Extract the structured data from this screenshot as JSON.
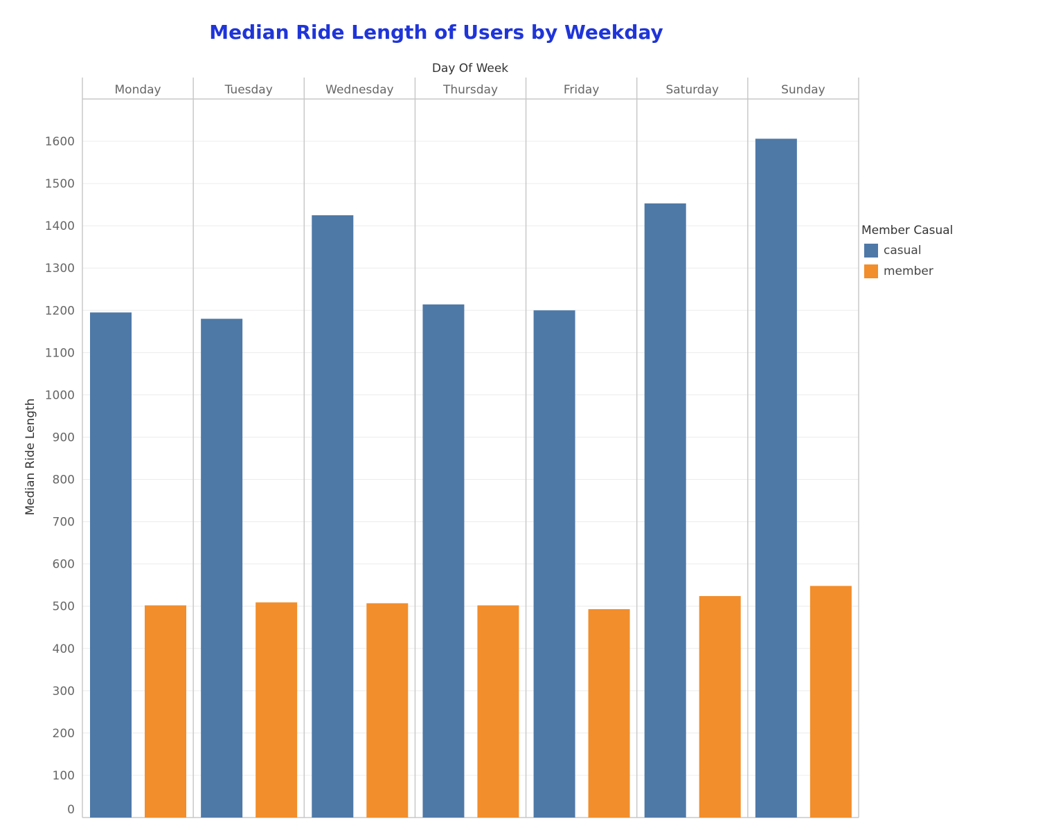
{
  "chart_data": {
    "type": "bar",
    "title": "Median Ride Length of Users by Weekday",
    "column_header_label": "Day Of Week",
    "ylabel": "Median Ride Length",
    "xlabel": "",
    "ylim": [
      0,
      1700
    ],
    "yticks": [
      "0",
      "100",
      "200",
      "300",
      "400",
      "500",
      "600",
      "700",
      "800",
      "900",
      "1000",
      "1100",
      "1200",
      "1300",
      "1400",
      "1500",
      "1600"
    ],
    "categories": [
      "Monday",
      "Tuesday",
      "Wednesday",
      "Thursday",
      "Friday",
      "Saturday",
      "Sunday"
    ],
    "series": [
      {
        "name": "casual",
        "color": "#4e79a7",
        "values": [
          1195,
          1180,
          1425,
          1214,
          1200,
          1453,
          1606
        ]
      },
      {
        "name": "member",
        "color": "#f28e2b",
        "values": [
          502,
          509,
          507,
          502,
          493,
          524,
          548
        ]
      }
    ],
    "legend": {
      "title": "Member Casual",
      "placement": "right"
    },
    "grid": true
  }
}
